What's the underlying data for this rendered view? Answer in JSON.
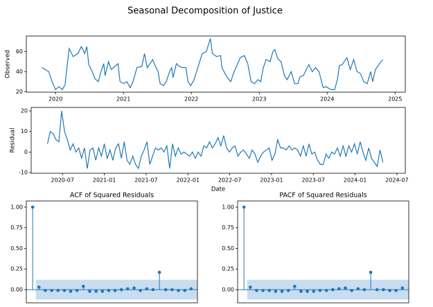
{
  "title": "Seasonal Decomposition of Justice",
  "chart_data": [
    {
      "type": "line",
      "ylabel": "Observed",
      "color": "#1f77b4",
      "xlim": [
        2019.57,
        2025.15
      ],
      "ylim": [
        19.5,
        75.5
      ],
      "xticks": [
        2020,
        2021,
        2022,
        2023,
        2024,
        2025
      ],
      "yticks": [
        20,
        40,
        60
      ],
      "x": [
        2019.8,
        2019.85,
        2019.9,
        2019.95,
        2020.0,
        2020.05,
        2020.1,
        2020.14,
        2020.2,
        2020.26,
        2020.33,
        2020.38,
        2020.43,
        2020.46,
        2020.49,
        2020.54,
        2020.58,
        2020.63,
        2020.67,
        2020.71,
        2020.73,
        2020.78,
        2020.82,
        2020.87,
        2020.92,
        2020.95,
        2021.0,
        2021.05,
        2021.1,
        2021.14,
        2021.2,
        2021.27,
        2021.31,
        2021.35,
        2021.39,
        2021.43,
        2021.48,
        2021.51,
        2021.54,
        2021.59,
        2021.63,
        2021.68,
        2021.71,
        2021.73,
        2021.78,
        2021.81,
        2021.86,
        2021.92,
        2021.95,
        2021.99,
        2022.04,
        2022.1,
        2022.16,
        2022.22,
        2022.28,
        2022.31,
        2022.37,
        2022.43,
        2022.45,
        2022.48,
        2022.53,
        2022.58,
        2022.63,
        2022.67,
        2022.72,
        2022.78,
        2022.83,
        2022.88,
        2022.93,
        2022.98,
        2023.02,
        2023.06,
        2023.1,
        2023.16,
        2023.2,
        2023.23,
        2023.27,
        2023.32,
        2023.37,
        2023.41,
        2023.47,
        2023.52,
        2023.57,
        2023.6,
        2023.65,
        2023.69,
        2023.73,
        2023.78,
        2023.83,
        2023.88,
        2023.94,
        2023.98,
        2024.06,
        2024.11,
        2024.15,
        2024.18,
        2024.22,
        2024.29,
        2024.34,
        2024.39,
        2024.44,
        2024.49,
        2024.54,
        2024.59,
        2024.64,
        2024.67,
        2024.71,
        2024.77,
        2024.82
      ],
      "values": [
        44,
        42,
        40,
        30,
        22,
        25,
        22,
        27,
        63,
        55,
        58,
        65,
        58,
        65,
        47,
        40,
        33,
        30,
        40,
        48,
        36,
        50,
        42,
        45,
        48,
        30,
        28,
        30,
        24,
        30,
        44,
        45,
        58,
        44,
        48,
        52,
        44,
        40,
        28,
        26,
        30,
        40,
        44,
        34,
        48,
        46,
        44,
        44,
        30,
        26,
        32,
        45,
        58,
        60,
        73,
        58,
        55,
        56,
        44,
        40,
        34,
        30,
        40,
        46,
        54,
        56,
        48,
        30,
        28,
        32,
        30,
        44,
        52,
        50,
        60,
        62,
        53,
        50,
        36,
        32,
        40,
        28,
        28,
        35,
        36,
        42,
        47,
        40,
        44,
        40,
        24,
        25,
        22,
        22,
        32,
        46,
        47,
        54,
        42,
        52,
        40,
        38,
        30,
        28,
        40,
        30,
        42,
        48,
        52
      ]
    },
    {
      "type": "line",
      "ylabel": "Residual",
      "xlabel": "Date",
      "color": "#1f77b4",
      "xlim": [
        2020.125,
        2024.6
      ],
      "ylim": [
        -10.3,
        21.7
      ],
      "xticks": [
        {
          "value": 2020.5,
          "label": "2020-07"
        },
        {
          "value": 2021.0,
          "label": "2021-01"
        },
        {
          "value": 2021.5,
          "label": "2021-07"
        },
        {
          "value": 2022.0,
          "label": "2022-01"
        },
        {
          "value": 2022.5,
          "label": "2022-07"
        },
        {
          "value": 2023.0,
          "label": "2023-01"
        },
        {
          "value": 2023.5,
          "label": "2023-07"
        },
        {
          "value": 2024.0,
          "label": "2024-01"
        },
        {
          "value": 2024.5,
          "label": "2024-07"
        }
      ],
      "yticks": [
        -10,
        0,
        10,
        20
      ],
      "x": [
        2020.32,
        2020.354,
        2020.388,
        2020.422,
        2020.456,
        2020.49,
        2020.524,
        2020.558,
        2020.592,
        2020.626,
        2020.66,
        2020.694,
        2020.728,
        2020.762,
        2020.796,
        2020.83,
        2020.864,
        2020.898,
        2020.932,
        2020.966,
        2021.0,
        2021.034,
        2021.068,
        2021.102,
        2021.136,
        2021.17,
        2021.204,
        2021.238,
        2021.272,
        2021.306,
        2021.34,
        2021.374,
        2021.408,
        2021.442,
        2021.476,
        2021.51,
        2021.544,
        2021.578,
        2021.612,
        2021.646,
        2021.68,
        2021.714,
        2021.748,
        2021.782,
        2021.816,
        2021.85,
        2021.884,
        2021.918,
        2021.952,
        2021.986,
        2022.02,
        2022.054,
        2022.088,
        2022.122,
        2022.156,
        2022.19,
        2022.224,
        2022.258,
        2022.292,
        2022.326,
        2022.36,
        2022.394,
        2022.428,
        2022.462,
        2022.496,
        2022.53,
        2022.564,
        2022.598,
        2022.632,
        2022.666,
        2022.7,
        2022.734,
        2022.768,
        2022.802,
        2022.836,
        2022.87,
        2022.904,
        2022.938,
        2022.972,
        2023.006,
        2023.04,
        2023.074,
        2023.108,
        2023.142,
        2023.176,
        2023.21,
        2023.244,
        2023.278,
        2023.312,
        2023.346,
        2023.38,
        2023.414,
        2023.448,
        2023.482,
        2023.516,
        2023.55,
        2023.584,
        2023.618,
        2023.652,
        2023.686,
        2023.72,
        2023.754,
        2023.788,
        2023.822,
        2023.856,
        2023.89,
        2023.924,
        2023.958,
        2023.992,
        2024.026,
        2024.06,
        2024.094,
        2024.128,
        2024.162,
        2024.196,
        2024.23,
        2024.264,
        2024.298,
        2024.332
      ],
      "values": [
        4,
        10,
        9,
        6,
        5,
        20,
        10,
        6,
        1,
        4,
        0,
        2,
        -3,
        2,
        -8,
        1,
        2,
        -4,
        2,
        -2,
        4,
        -3,
        1,
        -4,
        2,
        4,
        -3,
        5,
        -4,
        -6,
        -2,
        -6,
        -8,
        -2,
        1,
        5,
        -6,
        -2,
        2,
        1,
        2,
        0,
        3,
        -8,
        4,
        -2,
        2,
        -1,
        0,
        -1,
        -2,
        0,
        -3,
        0,
        -2,
        3,
        2,
        5,
        2,
        4,
        7,
        3,
        8,
        2,
        0,
        2,
        3,
        -2,
        0,
        1,
        -1,
        -3,
        1,
        -1,
        -5,
        -2,
        0,
        1,
        2,
        -4,
        -1,
        6,
        2,
        2,
        1,
        3,
        1,
        2,
        1,
        -2,
        3,
        -2,
        4,
        -1,
        0,
        -4,
        -6,
        -6,
        -1,
        -3,
        0,
        -1,
        2,
        -2,
        3,
        -2,
        3,
        0,
        4,
        -1,
        5,
        0,
        -4,
        2,
        -3,
        -5,
        -7,
        1,
        -5
      ]
    },
    {
      "type": "stem",
      "title": "ACF of Squared Residuals",
      "color": "#1f77b4",
      "band_color": "#c3d9ee",
      "xlim": [
        -1,
        26
      ],
      "ylim": [
        -0.16,
        1.075
      ],
      "yticks": [
        {
          "value": 0,
          "label": "0.00"
        },
        {
          "value": 0.25,
          "label": "0.25"
        },
        {
          "value": 0.5,
          "label": "0.50"
        },
        {
          "value": 0.75,
          "label": "0.75"
        },
        {
          "value": 1,
          "label": "1.00"
        }
      ],
      "confidence": [
        -0.12,
        0.12
      ],
      "x": [
        0,
        1,
        2,
        3,
        4,
        5,
        6,
        7,
        8,
        9,
        10,
        11,
        12,
        13,
        14,
        15,
        16,
        17,
        18,
        19,
        20,
        21,
        22,
        23,
        24,
        25
      ],
      "values": [
        1,
        0.03,
        -0.01,
        -0.01,
        -0.01,
        -0.01,
        -0.02,
        -0.01,
        0.04,
        -0.02,
        -0.02,
        -0.02,
        -0.01,
        -0.01,
        0.0,
        0.01,
        0.02,
        -0.01,
        0.01,
        0.0,
        0.21,
        0.0,
        0.0,
        -0.01,
        -0.01,
        0.01
      ]
    },
    {
      "type": "stem",
      "title": "PACF of Squared Residuals",
      "color": "#1f77b4",
      "band_color": "#c3d9ee",
      "xlim": [
        -1,
        26
      ],
      "ylim": [
        -0.16,
        1.075
      ],
      "yticks": [
        {
          "value": 0,
          "label": "0.00"
        },
        {
          "value": 0.25,
          "label": "0.25"
        },
        {
          "value": 0.5,
          "label": "0.50"
        },
        {
          "value": 0.75,
          "label": "0.75"
        },
        {
          "value": 1,
          "label": "1.00"
        }
      ],
      "confidence": [
        -0.12,
        0.12
      ],
      "x": [
        0,
        1,
        2,
        3,
        4,
        5,
        6,
        7,
        8,
        9,
        10,
        11,
        12,
        13,
        14,
        15,
        16,
        17,
        18,
        19,
        20,
        21,
        22,
        23,
        24,
        25
      ],
      "values": [
        1,
        0.03,
        -0.01,
        -0.01,
        -0.01,
        -0.02,
        -0.02,
        -0.01,
        0.04,
        -0.02,
        -0.02,
        -0.02,
        -0.01,
        -0.01,
        0.0,
        0.01,
        0.02,
        -0.01,
        0.01,
        0.0,
        0.21,
        0.0,
        0.0,
        -0.01,
        -0.01,
        0.02
      ]
    }
  ]
}
